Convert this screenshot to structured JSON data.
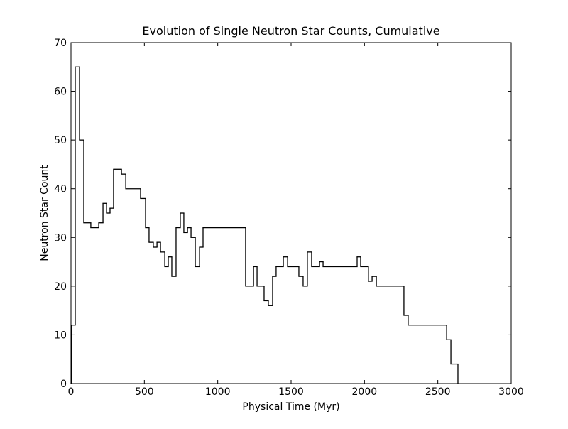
{
  "chart_data": {
    "type": "step",
    "title": "Evolution of Single Neutron Star Counts, Cumulative",
    "xlabel": "Physical Time (Myr)",
    "ylabel": "Neutron Star Count",
    "x": [
      0,
      5,
      29,
      58,
      87,
      135,
      189,
      218,
      242,
      266,
      290,
      344,
      373,
      474,
      508,
      532,
      561,
      586,
      610,
      639,
      663,
      687,
      716,
      745,
      769,
      794,
      818,
      847,
      876,
      900,
      1190,
      1244,
      1268,
      1316,
      1345,
      1374,
      1398,
      1447,
      1476,
      1553,
      1582,
      1611,
      1640,
      1694,
      1718,
      1950,
      1974,
      2027,
      2052,
      2081,
      2269,
      2298,
      2560,
      2589,
      2637
    ],
    "values": [
      0,
      12,
      65,
      50,
      33,
      32,
      33,
      37,
      35,
      36,
      44,
      43,
      40,
      38,
      32,
      29,
      28,
      29,
      27,
      24,
      26,
      22,
      32,
      35,
      31,
      32,
      30,
      24,
      28,
      32,
      20,
      24,
      20,
      17,
      16,
      22,
      24,
      26,
      24,
      22,
      20,
      27,
      24,
      25,
      24,
      26,
      24,
      21,
      22,
      20,
      14,
      12,
      9,
      4,
      0
    ],
    "color": "#000000",
    "xlim": [
      0,
      3000
    ],
    "xticks": [
      0,
      500,
      1000,
      1500,
      2000,
      2500,
      3000
    ],
    "ylim": [
      0,
      70
    ],
    "yticks": [
      0,
      10,
      20,
      30,
      40,
      50,
      60,
      70
    ]
  }
}
